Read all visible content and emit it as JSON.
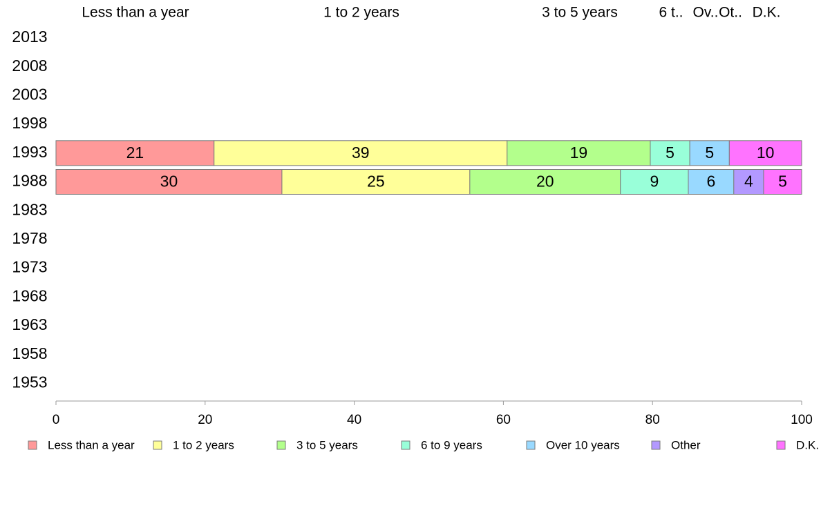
{
  "chart_data": {
    "type": "bar",
    "orientation": "horizontal",
    "stacked": true,
    "years": [
      "2013",
      "2008",
      "2003",
      "1998",
      "1993",
      "1988",
      "1983",
      "1978",
      "1973",
      "1968",
      "1963",
      "1958",
      "1953"
    ],
    "top_labels": [
      "Less than a year",
      "1 to 2 years",
      "3 to 5 years",
      "6 t..",
      "Ov..",
      "Ot..",
      "D.K."
    ],
    "series": [
      {
        "name": "Less than a year",
        "color": "#ff9999"
      },
      {
        "name": "1 to 2 years",
        "color": "#ffff99"
      },
      {
        "name": "3 to 5 years",
        "color": "#b3ff8c"
      },
      {
        "name": "6 to 9 years",
        "color": "#99ffd9"
      },
      {
        "name": "Over 10 years",
        "color": "#99d9ff"
      },
      {
        "name": "Other",
        "color": "#b399ff"
      },
      {
        "name": "D.K.",
        "color": "#ff73ff"
      }
    ],
    "bars": [
      {
        "year": "1993",
        "values": [
          21.2,
          39.3,
          19.2,
          5.3,
          5.3,
          0,
          9.7
        ],
        "labels": [
          "21",
          "39",
          "19",
          "5",
          "5",
          "",
          "10"
        ]
      },
      {
        "year": "1988",
        "values": [
          30.3,
          25.2,
          20.2,
          9.1,
          6.1,
          4.0,
          5.1
        ],
        "labels": [
          "30",
          "25",
          "20",
          "9",
          "6",
          "4",
          "5"
        ]
      }
    ],
    "xlim": [
      0,
      100
    ],
    "xticks": [
      "0",
      "20",
      "40",
      "60",
      "80",
      "100"
    ],
    "legend": "bottom"
  }
}
